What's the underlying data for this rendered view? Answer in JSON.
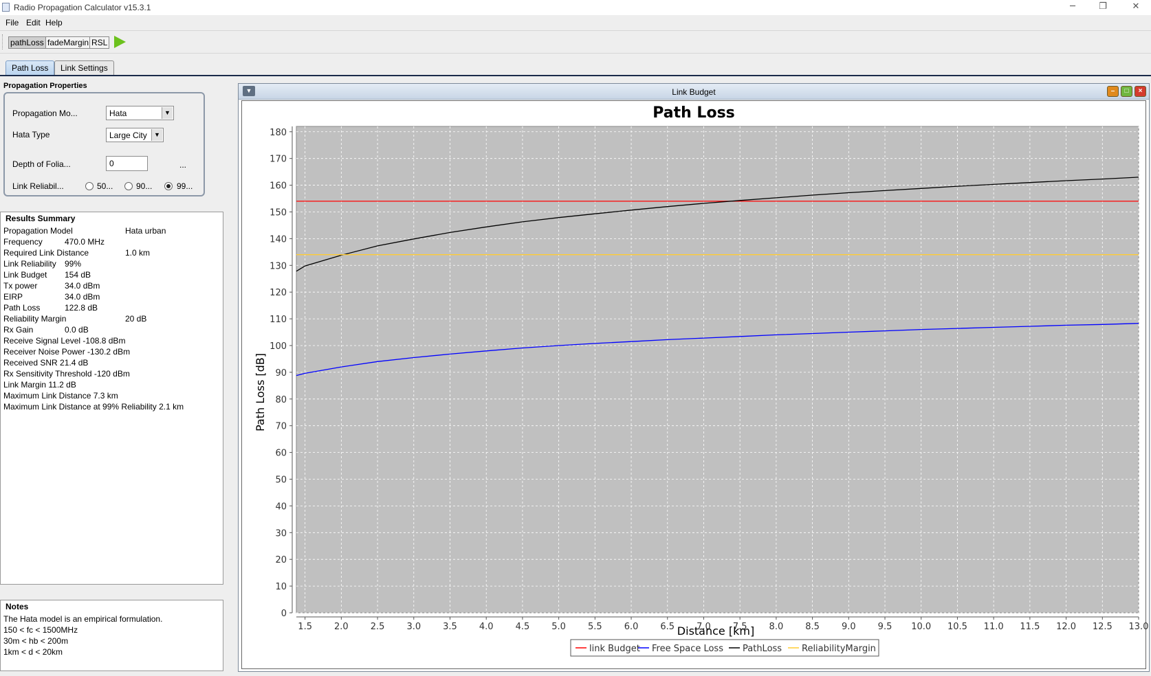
{
  "window": {
    "title": "Radio Propagation Calculator v15.3.1",
    "controls": [
      "─",
      "❐",
      "✕"
    ]
  },
  "menu": [
    "File",
    "Edit",
    "Help"
  ],
  "toolbar": {
    "buttons": [
      "pathLoss",
      "fadeMargin",
      "RSL"
    ],
    "selected": "pathLoss"
  },
  "tabs": [
    {
      "label": "Path Loss",
      "active": true
    },
    {
      "label": "Link Settings",
      "active": false
    }
  ],
  "properties": {
    "title": "Propagation Properties",
    "model_label": "Propagation Mo...",
    "model_value": "Hata",
    "hata_type_label": "Hata Type",
    "hata_type_value": "Large City",
    "foliage_label": "Depth of Folia...",
    "foliage_value": "0",
    "foliage_more": "...",
    "reliability_label": "Link Reliabil...",
    "reliability_options": [
      "50...",
      "90...",
      "99..."
    ],
    "reliability_selected": 2
  },
  "results": {
    "title": "Results Summary",
    "rows": [
      {
        "label": "Propagation Model",
        "value": "Hata urban",
        "wide": true
      },
      {
        "label": "Frequency",
        "value": "470.0 MHz",
        "wide": false
      },
      {
        "label": "Required Link Distance",
        "value": "1.0 km",
        "wide": true
      },
      {
        "label": "Link Reliability",
        "value": "99%",
        "wide": false
      },
      {
        "label": "Link Budget",
        "value": "154 dB",
        "wide": false
      },
      {
        "label": "Tx power",
        "value": "34.0 dBm",
        "wide": false
      },
      {
        "label": "EIRP",
        "value": "34.0 dBm",
        "wide": false
      },
      {
        "label": "Path Loss",
        "value": "122.8 dB",
        "wide": false
      },
      {
        "label": "Reliability Margin",
        "value": "20 dB",
        "wide": true
      },
      {
        "label": "Rx Gain",
        "value": "0.0 dB",
        "wide": false
      },
      {
        "label": "Receive Signal Level -108.8 dBm",
        "value": "",
        "wide": false
      },
      {
        "label": "Receiver Noise Power -130.2 dBm",
        "value": "",
        "wide": false
      },
      {
        "label": "Received SNR 21.4 dB",
        "value": "",
        "wide": false
      },
      {
        "label": "Rx Sensitivity Threshold -120 dBm",
        "value": "",
        "wide": false
      },
      {
        "label": "Link Margin 11.2 dB",
        "value": "",
        "wide": false
      },
      {
        "label": "Maximum Link Distance 7.3 km",
        "value": "",
        "wide": false
      },
      {
        "label": "Maximum Link Distance at 99% Reliability 2.1 km",
        "value": "",
        "wide": false
      }
    ]
  },
  "notes": {
    "title": "Notes",
    "lines": [
      "The Hata model is an empirical formulation.",
      "150 < fc < 1500MHz",
      "30m < hb < 200m",
      "1km < d < 20km"
    ]
  },
  "chart_frame": {
    "title": "Link Budget"
  },
  "chart_data": {
    "type": "line",
    "title": "Path Loss",
    "xlabel": "Distance [km]",
    "ylabel": "Path Loss [dB]",
    "xlim": [
      1.38,
      13.0
    ],
    "ylim": [
      0,
      182
    ],
    "x_ticks": [
      "1.5",
      "2.0",
      "2.5",
      "3.0",
      "3.5",
      "4.0",
      "4.5",
      "5.0",
      "5.5",
      "6.0",
      "6.5",
      "7.0",
      "7.5",
      "8.0",
      "8.5",
      "9.0",
      "9.5",
      "10.0",
      "10.5",
      "11.0",
      "11.5",
      "12.0",
      "12.5",
      "13.0"
    ],
    "y_ticks": [
      "0",
      "10",
      "20",
      "30",
      "40",
      "50",
      "60",
      "70",
      "80",
      "90",
      "100",
      "110",
      "120",
      "130",
      "140",
      "150",
      "160",
      "170",
      "180"
    ],
    "grid": true,
    "legend_position": "bottom",
    "series": [
      {
        "name": "linkBudget",
        "color": "#ff0000",
        "x": [
          1.38,
          13.0
        ],
        "y": [
          154,
          154
        ]
      },
      {
        "name": "Free Space Loss",
        "color": "#0000ff",
        "x": [
          1.38,
          1.5,
          2.0,
          2.5,
          3.0,
          3.5,
          4.0,
          4.5,
          5.0,
          5.5,
          6.0,
          6.5,
          7.0,
          7.5,
          8.0,
          8.5,
          9.0,
          9.5,
          10.0,
          10.5,
          11.0,
          11.5,
          12.0,
          12.5,
          13.0
        ],
        "y": [
          88.8,
          89.6,
          92.0,
          94.0,
          95.5,
          96.8,
          98.0,
          99.1,
          100.0,
          100.8,
          101.5,
          102.2,
          102.8,
          103.4,
          104.0,
          104.5,
          105.0,
          105.5,
          106.0,
          106.4,
          106.8,
          107.2,
          107.6,
          107.9,
          108.3
        ]
      },
      {
        "name": "PathLoss",
        "color": "#000000",
        "x": [
          1.38,
          1.5,
          2.0,
          2.5,
          3.0,
          3.5,
          4.0,
          4.5,
          5.0,
          5.5,
          6.0,
          6.5,
          7.0,
          7.5,
          8.0,
          8.5,
          9.0,
          9.5,
          10.0,
          10.5,
          11.0,
          11.5,
          12.0,
          12.5,
          13.0
        ],
        "y": [
          127.8,
          129.8,
          133.8,
          137.3,
          139.9,
          142.3,
          144.4,
          146.3,
          147.9,
          149.3,
          150.7,
          152.0,
          153.2,
          154.3,
          155.3,
          156.3,
          157.2,
          158.0,
          158.8,
          159.6,
          160.3,
          161.0,
          161.7,
          162.3,
          163.0
        ]
      },
      {
        "name": "ReliabilityMargin",
        "color": "#ffcc33",
        "x": [
          1.38,
          13.0
        ],
        "y": [
          134,
          134
        ]
      }
    ],
    "legend": [
      "link Budget",
      "Free Space Loss",
      "PathLoss",
      "ReliabilityMargin"
    ]
  }
}
